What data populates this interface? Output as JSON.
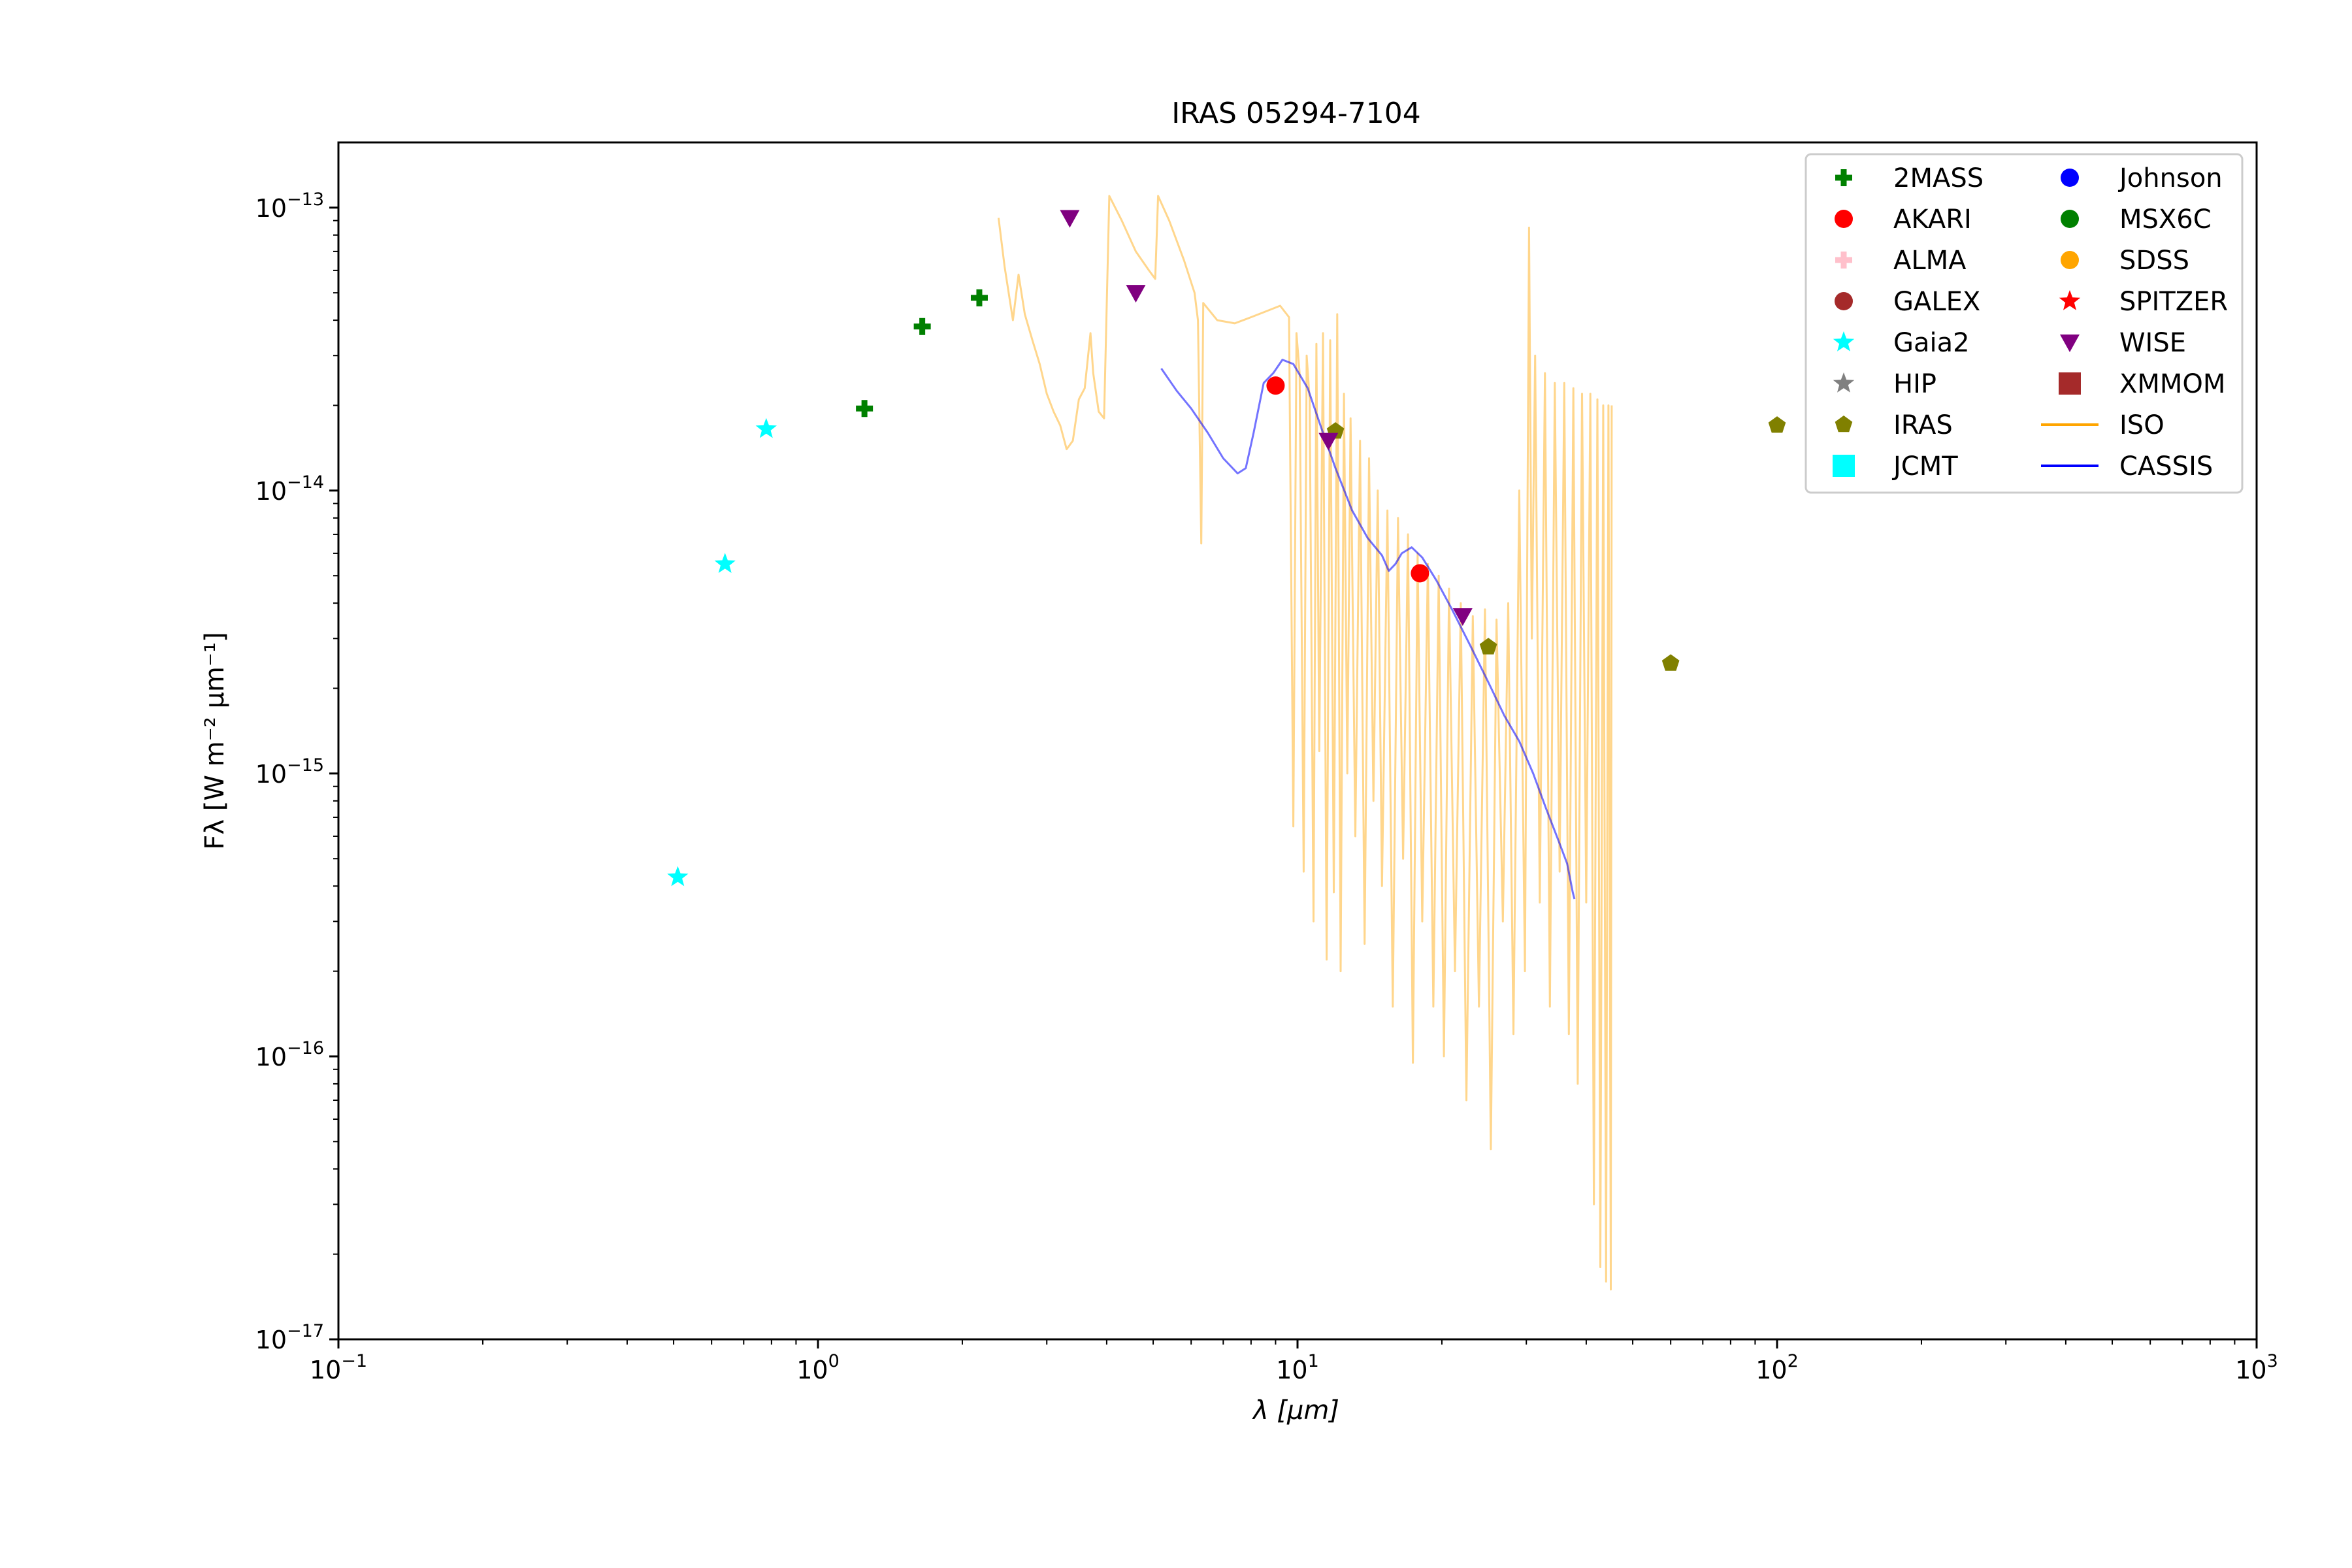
{
  "chart_data": {
    "type": "scatter",
    "title": "IRAS 05294-7104",
    "xlabel": "λ [μm]",
    "ylabel": "Fλ [W m⁻² μm⁻¹]",
    "xscale": "log",
    "yscale": "log",
    "xlim": [
      0.1,
      1000
    ],
    "ylim": [
      1e-17,
      1.7e-13
    ],
    "x_ticks": [
      {
        "value": 0.1,
        "base": "10",
        "exp": "−1"
      },
      {
        "value": 1,
        "base": "10",
        "exp": "0"
      },
      {
        "value": 10,
        "base": "10",
        "exp": "1"
      },
      {
        "value": 100,
        "base": "10",
        "exp": "2"
      },
      {
        "value": 1000,
        "base": "10",
        "exp": "3"
      }
    ],
    "y_ticks": [
      {
        "value": 1e-17,
        "base": "10",
        "exp": "−17"
      },
      {
        "value": 1e-16,
        "base": "10",
        "exp": "−16"
      },
      {
        "value": 1e-15,
        "base": "10",
        "exp": "−15"
      },
      {
        "value": 1e-14,
        "base": "10",
        "exp": "−14"
      },
      {
        "value": 1e-13,
        "base": "10",
        "exp": "−13"
      }
    ],
    "grid": false,
    "legend_position": "top-right",
    "legend": [
      {
        "label": "2MASS",
        "marker": "plus",
        "color": "#008000"
      },
      {
        "label": "AKARI",
        "marker": "circle",
        "color": "#ff0000"
      },
      {
        "label": "ALMA",
        "marker": "plus",
        "color": "#ffc0cb"
      },
      {
        "label": "GALEX",
        "marker": "circle",
        "color": "#a52a2a"
      },
      {
        "label": "Gaia2",
        "marker": "star",
        "color": "#00ffff"
      },
      {
        "label": "HIP",
        "marker": "star",
        "color": "#808080"
      },
      {
        "label": "IRAS",
        "marker": "pentagon",
        "color": "#808000"
      },
      {
        "label": "JCMT",
        "marker": "square",
        "color": "#00ffff"
      },
      {
        "label": "Johnson",
        "marker": "circle",
        "color": "#0000ff"
      },
      {
        "label": "MSX6C",
        "marker": "circle",
        "color": "#008000"
      },
      {
        "label": "SDSS",
        "marker": "circle",
        "color": "#ffa500"
      },
      {
        "label": "SPITZER",
        "marker": "star",
        "color": "#ff0000"
      },
      {
        "label": "WISE",
        "marker": "triangle-down",
        "color": "#800080"
      },
      {
        "label": "XMMOM",
        "marker": "square",
        "color": "#a52a2a"
      },
      {
        "label": "ISO",
        "marker": "line",
        "color": "#ffa500"
      },
      {
        "label": "CASSIS",
        "marker": "line",
        "color": "#0000ff"
      }
    ],
    "series": [
      {
        "name": "2MASS",
        "marker": "plus",
        "color": "#008000",
        "points": [
          {
            "x": 1.25,
            "y": 1.95e-14
          },
          {
            "x": 1.65,
            "y": 3.8e-14
          },
          {
            "x": 2.17,
            "y": 4.8e-14
          }
        ]
      },
      {
        "name": "AKARI",
        "marker": "circle",
        "color": "#ff0000",
        "points": [
          {
            "x": 9.0,
            "y": 2.35e-14
          },
          {
            "x": 18.0,
            "y": 5.1e-15
          }
        ]
      },
      {
        "name": "Gaia2",
        "marker": "star",
        "color": "#00ffff",
        "points": [
          {
            "x": 0.51,
            "y": 4.3e-16
          },
          {
            "x": 0.64,
            "y": 5.5e-15
          },
          {
            "x": 0.78,
            "y": 1.65e-14
          }
        ]
      },
      {
        "name": "IRAS",
        "marker": "pentagon",
        "color": "#808000",
        "points": [
          {
            "x": 12,
            "y": 1.62e-14
          },
          {
            "x": 25,
            "y": 2.8e-15
          },
          {
            "x": 60,
            "y": 2.45e-15
          },
          {
            "x": 100,
            "y": 1.7e-14
          }
        ]
      },
      {
        "name": "WISE",
        "marker": "triangle-down",
        "color": "#800080",
        "points": [
          {
            "x": 3.35,
            "y": 9.2e-14
          },
          {
            "x": 4.6,
            "y": 5e-14
          },
          {
            "x": 11.6,
            "y": 1.5e-14
          },
          {
            "x": 22.1,
            "y": 3.6e-15
          }
        ]
      }
    ],
    "lines": [
      {
        "name": "ISO",
        "color": "#ffa500",
        "alpha": 0.45,
        "points": [
          {
            "x": 2.38,
            "y": 9.2e-14
          },
          {
            "x": 2.45,
            "y": 6.2e-14
          },
          {
            "x": 2.55,
            "y": 4e-14
          },
          {
            "x": 2.62,
            "y": 5.8e-14
          },
          {
            "x": 2.7,
            "y": 4.2e-14
          },
          {
            "x": 2.8,
            "y": 3.4e-14
          },
          {
            "x": 2.9,
            "y": 2.8e-14
          },
          {
            "x": 3.0,
            "y": 2.2e-14
          },
          {
            "x": 3.1,
            "y": 1.9e-14
          },
          {
            "x": 3.2,
            "y": 1.7e-14
          },
          {
            "x": 3.3,
            "y": 1.4e-14
          },
          {
            "x": 3.4,
            "y": 1.5e-14
          },
          {
            "x": 3.5,
            "y": 2.1e-14
          },
          {
            "x": 3.6,
            "y": 2.3e-14
          },
          {
            "x": 3.7,
            "y": 3.6e-14
          },
          {
            "x": 3.75,
            "y": 2.6e-14
          },
          {
            "x": 3.85,
            "y": 1.9e-14
          },
          {
            "x": 3.95,
            "y": 1.8e-14
          },
          {
            "x": 4.05,
            "y": 1.1e-13
          },
          {
            "x": 4.3,
            "y": 9e-14
          },
          {
            "x": 4.6,
            "y": 7e-14
          },
          {
            "x": 4.9,
            "y": 6e-14
          },
          {
            "x": 5.05,
            "y": 5.6e-14
          },
          {
            "x": 5.12,
            "y": 1.1e-13
          },
          {
            "x": 5.4,
            "y": 9e-14
          },
          {
            "x": 5.8,
            "y": 6.5e-14
          },
          {
            "x": 6.1,
            "y": 5e-14
          },
          {
            "x": 6.2,
            "y": 4e-14
          },
          {
            "x": 6.3,
            "y": 6.5e-15
          },
          {
            "x": 6.36,
            "y": 4.6e-14
          },
          {
            "x": 6.8,
            "y": 4e-14
          },
          {
            "x": 7.4,
            "y": 3.9e-14
          },
          {
            "x": 8.0,
            "y": 4.1e-14
          },
          {
            "x": 8.6,
            "y": 4.3e-14
          },
          {
            "x": 9.2,
            "y": 4.5e-14
          },
          {
            "x": 9.6,
            "y": 4.1e-14
          },
          {
            "x": 9.8,
            "y": 6.5e-16
          },
          {
            "x": 9.95,
            "y": 3.6e-14
          },
          {
            "x": 10.1,
            "y": 2.6e-14
          },
          {
            "x": 10.3,
            "y": 4.5e-16
          },
          {
            "x": 10.45,
            "y": 3e-14
          },
          {
            "x": 10.6,
            "y": 2.1e-14
          },
          {
            "x": 10.8,
            "y": 3e-16
          },
          {
            "x": 10.95,
            "y": 3.3e-14
          },
          {
            "x": 11.1,
            "y": 1.2e-15
          },
          {
            "x": 11.3,
            "y": 3.6e-14
          },
          {
            "x": 11.5,
            "y": 2.2e-16
          },
          {
            "x": 11.7,
            "y": 3.4e-14
          },
          {
            "x": 11.9,
            "y": 3.8e-16
          },
          {
            "x": 12.1,
            "y": 4.2e-14
          },
          {
            "x": 12.3,
            "y": 2e-16
          },
          {
            "x": 12.5,
            "y": 2.2e-14
          },
          {
            "x": 12.7,
            "y": 1e-15
          },
          {
            "x": 12.9,
            "y": 1.8e-14
          },
          {
            "x": 13.2,
            "y": 6e-16
          },
          {
            "x": 13.5,
            "y": 1.5e-14
          },
          {
            "x": 13.8,
            "y": 2.5e-16
          },
          {
            "x": 14.1,
            "y": 1.3e-14
          },
          {
            "x": 14.4,
            "y": 8e-16
          },
          {
            "x": 14.7,
            "y": 1e-14
          },
          {
            "x": 15.0,
            "y": 4e-16
          },
          {
            "x": 15.4,
            "y": 8.5e-15
          },
          {
            "x": 15.8,
            "y": 1.5e-16
          },
          {
            "x": 16.2,
            "y": 8e-15
          },
          {
            "x": 16.6,
            "y": 5e-16
          },
          {
            "x": 17.0,
            "y": 7e-15
          },
          {
            "x": 17.4,
            "y": 9.5e-17
          },
          {
            "x": 17.8,
            "y": 6e-15
          },
          {
            "x": 18.2,
            "y": 3e-16
          },
          {
            "x": 18.7,
            "y": 5.5e-15
          },
          {
            "x": 19.2,
            "y": 1.5e-16
          },
          {
            "x": 19.7,
            "y": 5e-15
          },
          {
            "x": 20.2,
            "y": 1e-16
          },
          {
            "x": 20.7,
            "y": 4.5e-15
          },
          {
            "x": 21.3,
            "y": 2e-16
          },
          {
            "x": 21.9,
            "y": 4e-15
          },
          {
            "x": 22.5,
            "y": 7e-17
          },
          {
            "x": 23.2,
            "y": 3.6e-15
          },
          {
            "x": 23.9,
            "y": 1.5e-16
          },
          {
            "x": 24.6,
            "y": 3.8e-15
          },
          {
            "x": 25.3,
            "y": 4.7e-17
          },
          {
            "x": 26.0,
            "y": 3.5e-15
          },
          {
            "x": 26.8,
            "y": 3e-16
          },
          {
            "x": 27.5,
            "y": 4e-15
          },
          {
            "x": 28.2,
            "y": 1.2e-16
          },
          {
            "x": 29.0,
            "y": 1e-14
          },
          {
            "x": 29.8,
            "y": 2e-16
          },
          {
            "x": 30.4,
            "y": 8.5e-14
          },
          {
            "x": 30.8,
            "y": 3e-15
          },
          {
            "x": 31.3,
            "y": 3e-14
          },
          {
            "x": 32.0,
            "y": 3.5e-16
          },
          {
            "x": 32.8,
            "y": 2.6e-14
          },
          {
            "x": 33.6,
            "y": 1.5e-16
          },
          {
            "x": 34.4,
            "y": 2.4e-14
          },
          {
            "x": 35.2,
            "y": 4.5e-16
          },
          {
            "x": 36.0,
            "y": 2.4e-14
          },
          {
            "x": 36.8,
            "y": 1.2e-16
          },
          {
            "x": 37.6,
            "y": 2.3e-14
          },
          {
            "x": 38.4,
            "y": 8e-17
          },
          {
            "x": 39.2,
            "y": 2.2e-14
          },
          {
            "x": 40.0,
            "y": 3.5e-16
          },
          {
            "x": 40.8,
            "y": 2.2e-14
          },
          {
            "x": 41.5,
            "y": 3e-17
          },
          {
            "x": 42.2,
            "y": 2.1e-14
          },
          {
            "x": 42.8,
            "y": 1.8e-17
          },
          {
            "x": 43.4,
            "y": 2e-14
          },
          {
            "x": 44.0,
            "y": 1.6e-17
          },
          {
            "x": 44.5,
            "y": 2e-14
          },
          {
            "x": 45.0,
            "y": 1.5e-17
          },
          {
            "x": 45.2,
            "y": 2e-14
          }
        ]
      },
      {
        "name": "CASSIS",
        "color": "#0000ff",
        "alpha": 0.55,
        "points": [
          {
            "x": 5.2,
            "y": 2.7e-14
          },
          {
            "x": 5.6,
            "y": 2.25e-14
          },
          {
            "x": 6.0,
            "y": 1.95e-14
          },
          {
            "x": 6.5,
            "y": 1.6e-14
          },
          {
            "x": 7.0,
            "y": 1.3e-14
          },
          {
            "x": 7.5,
            "y": 1.15e-14
          },
          {
            "x": 7.8,
            "y": 1.2e-14
          },
          {
            "x": 8.1,
            "y": 1.6e-14
          },
          {
            "x": 8.5,
            "y": 2.4e-14
          },
          {
            "x": 8.9,
            "y": 2.6e-14
          },
          {
            "x": 9.3,
            "y": 2.9e-14
          },
          {
            "x": 9.8,
            "y": 2.8e-14
          },
          {
            "x": 10.5,
            "y": 2.3e-14
          },
          {
            "x": 11.3,
            "y": 1.6e-14
          },
          {
            "x": 12.0,
            "y": 1.2e-14
          },
          {
            "x": 13.0,
            "y": 8.5e-15
          },
          {
            "x": 14.0,
            "y": 6.8e-15
          },
          {
            "x": 15.0,
            "y": 5.9e-15
          },
          {
            "x": 15.5,
            "y": 5.2e-15
          },
          {
            "x": 16.0,
            "y": 5.5e-15
          },
          {
            "x": 16.5,
            "y": 6e-15
          },
          {
            "x": 17.3,
            "y": 6.3e-15
          },
          {
            "x": 18.2,
            "y": 5.8e-15
          },
          {
            "x": 19.5,
            "y": 4.8e-15
          },
          {
            "x": 21.0,
            "y": 3.8e-15
          },
          {
            "x": 23.0,
            "y": 2.8e-15
          },
          {
            "x": 25.0,
            "y": 2.1e-15
          },
          {
            "x": 27.0,
            "y": 1.6e-15
          },
          {
            "x": 29.0,
            "y": 1.3e-15
          },
          {
            "x": 31.0,
            "y": 1e-15
          },
          {
            "x": 33.0,
            "y": 7.5e-16
          },
          {
            "x": 35.0,
            "y": 5.8e-16
          },
          {
            "x": 36.5,
            "y": 4.8e-16
          },
          {
            "x": 37.5,
            "y": 3.8e-16
          },
          {
            "x": 37.8,
            "y": 3.6e-16
          }
        ]
      }
    ]
  }
}
